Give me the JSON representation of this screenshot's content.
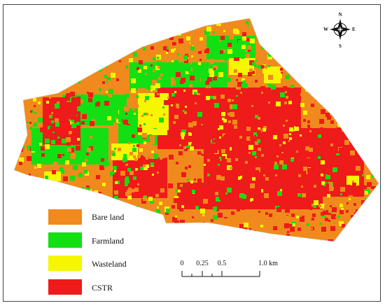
{
  "compass": {
    "north": "N",
    "south": "S",
    "east": "E",
    "west": "W"
  },
  "legend": {
    "items": [
      {
        "label": "Bare land",
        "color": "#f18a1c"
      },
      {
        "label": "Farmland",
        "color": "#12e012"
      },
      {
        "label": "Wasteland",
        "color": "#f6f600"
      },
      {
        "label": "CSTR",
        "color": "#ef1a1a"
      }
    ]
  },
  "scale_bar": {
    "ticks": [
      "0",
      "0.25",
      "0.5",
      "1.0 km"
    ]
  }
}
